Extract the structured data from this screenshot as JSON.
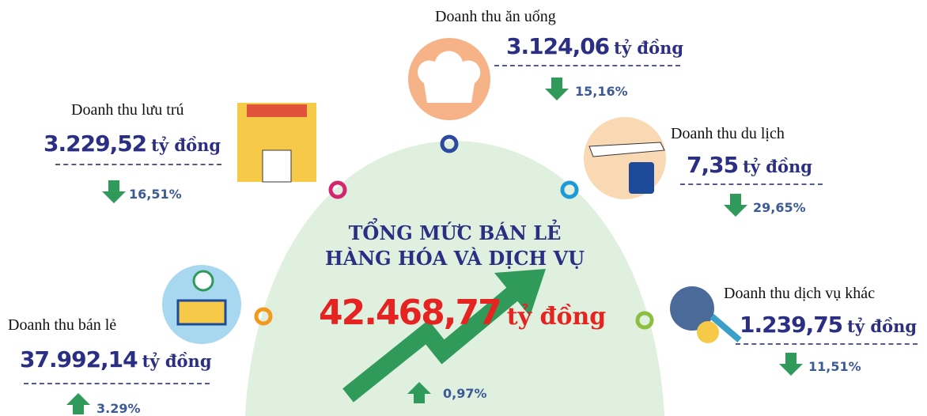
{
  "center": {
    "title_lines": [
      "TỔNG MỨC BÁN LẺ",
      "HÀNG HÓA VÀ DỊCH VỤ"
    ],
    "value": "42.468,77",
    "unit": "tỷ đồng",
    "change": "0,97%"
  },
  "items": [
    {
      "label": "Doanh thu ăn uống",
      "value": "3.124,06",
      "unit": "tỷ đồng",
      "change": "15,16%"
    },
    {
      "label": "Doanh thu lưu trú",
      "value": "3.229,52",
      "unit": "tỷ đồng",
      "change": "16,51%"
    },
    {
      "label": "Doanh thu du lịch",
      "value": "7,35",
      "unit": "tỷ đồng",
      "change": "29,65%"
    },
    {
      "label": "Doanh thu bán lẻ",
      "value": "37.992,14",
      "unit": "tỷ đồng",
      "change": "3.29%"
    },
    {
      "label": "Doanh thu dịch vụ khác",
      "value": "1.239,75",
      "unit": "tỷ đồng",
      "change": "11,51%"
    }
  ]
}
